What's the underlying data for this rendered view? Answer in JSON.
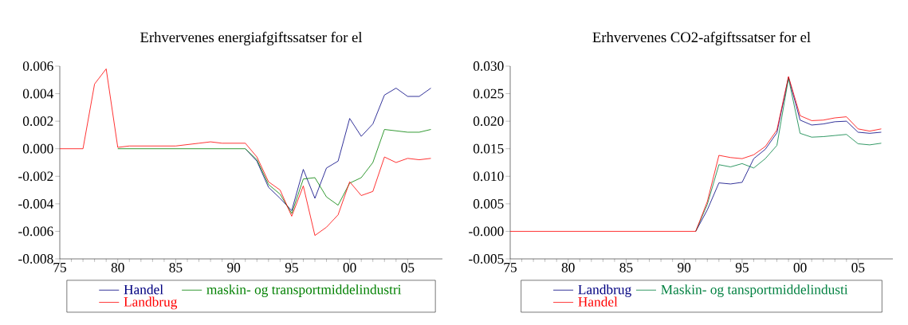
{
  "chart_data": [
    {
      "type": "line",
      "title": "Erhvervenes energiafgiftssatser for el",
      "legend": "bottom",
      "x": [
        1975,
        1976,
        1977,
        1978,
        1979,
        1980,
        1981,
        1982,
        1983,
        1984,
        1985,
        1986,
        1987,
        1988,
        1989,
        1990,
        1991,
        1992,
        1993,
        1994,
        1995,
        1996,
        1997,
        1998,
        1999,
        2000,
        2001,
        2002,
        2003,
        2004,
        2005,
        2006,
        2007
      ],
      "xlim": [
        1975,
        2008
      ],
      "xticks": [
        {
          "value": 1975,
          "label": "75"
        },
        {
          "value": 1980,
          "label": "80"
        },
        {
          "value": 1985,
          "label": "85"
        },
        {
          "value": 1990,
          "label": "90"
        },
        {
          "value": 1995,
          "label": "95"
        },
        {
          "value": 2000,
          "label": "00"
        },
        {
          "value": 2005,
          "label": "05"
        }
      ],
      "ylim": [
        -0.008,
        0.006
      ],
      "yticks": [
        {
          "value": -0.008,
          "label": "-0.008"
        },
        {
          "value": -0.006,
          "label": "-0.006"
        },
        {
          "value": -0.004,
          "label": "-0.004"
        },
        {
          "value": -0.002,
          "label": "-0.002"
        },
        {
          "value": 0,
          "label": "0.000"
        },
        {
          "value": 0.002,
          "label": "0.002"
        },
        {
          "value": 0.004,
          "label": "0.004"
        },
        {
          "value": 0.006,
          "label": "0.006"
        }
      ],
      "series": [
        {
          "name": "Handel",
          "color": "#000080",
          "values": [
            null,
            null,
            null,
            null,
            null,
            null,
            null,
            null,
            null,
            null,
            null,
            null,
            null,
            null,
            null,
            null,
            0,
            -0.0009,
            -0.0028,
            -0.0036,
            -0.0045,
            -0.0015,
            -0.0036,
            -0.0014,
            -0.0009,
            0.0022,
            0.0009,
            0.0018,
            0.0039,
            0.0044,
            0.0038,
            0.0038,
            0.0044
          ]
        },
        {
          "name": "maskin- og transportmiddelindustri",
          "color": "#008000",
          "values": [
            null,
            null,
            null,
            null,
            null,
            0,
            0,
            0,
            0,
            0,
            0,
            0,
            0,
            0,
            0,
            0,
            0,
            -0.0008,
            -0.0026,
            -0.0033,
            -0.0047,
            -0.0022,
            -0.0021,
            -0.0035,
            -0.0041,
            -0.0025,
            -0.0021,
            -0.001,
            0.0014,
            0.0013,
            0.0012,
            0.0012,
            0.0014
          ]
        },
        {
          "name": "Landbrug",
          "color": "#ff0000",
          "values": [
            0,
            0,
            0,
            0.0047,
            0.0058,
            0.0001,
            0.0002,
            0.0002,
            0.0002,
            0.0002,
            0.0002,
            0.0003,
            0.0004,
            0.0005,
            0.0004,
            0.0004,
            0.0004,
            -0.0006,
            -0.0024,
            -0.003,
            -0.0049,
            -0.0027,
            -0.0063,
            -0.0057,
            -0.0048,
            -0.0024,
            -0.0034,
            -0.0031,
            -0.0006,
            -0.001,
            -0.0007,
            -0.0008,
            -0.0007
          ]
        }
      ]
    },
    {
      "type": "line",
      "title": "Erhvervenes CO2-afgiftssatser for el",
      "legend": "bottom",
      "x": [
        1975,
        1976,
        1977,
        1978,
        1979,
        1980,
        1981,
        1982,
        1983,
        1984,
        1985,
        1986,
        1987,
        1988,
        1989,
        1990,
        1991,
        1992,
        1993,
        1994,
        1995,
        1996,
        1997,
        1998,
        1999,
        2000,
        2001,
        2002,
        2003,
        2004,
        2005,
        2006,
        2007
      ],
      "xlim": [
        1975,
        2008
      ],
      "xticks": [
        {
          "value": 1975,
          "label": "75"
        },
        {
          "value": 1980,
          "label": "80"
        },
        {
          "value": 1985,
          "label": "85"
        },
        {
          "value": 1990,
          "label": "90"
        },
        {
          "value": 1995,
          "label": "95"
        },
        {
          "value": 2000,
          "label": "00"
        },
        {
          "value": 2005,
          "label": "05"
        }
      ],
      "ylim": [
        -0.005,
        0.03
      ],
      "yticks": [
        {
          "value": -0.005,
          "label": "-0.005"
        },
        {
          "value": 0,
          "label": "-0.000"
        },
        {
          "value": 0.005,
          "label": "0.005"
        },
        {
          "value": 0.01,
          "label": "0.010"
        },
        {
          "value": 0.015,
          "label": "0.015"
        },
        {
          "value": 0.02,
          "label": "0.020"
        },
        {
          "value": 0.025,
          "label": "0.025"
        },
        {
          "value": 0.03,
          "label": "0.030"
        }
      ],
      "series": [
        {
          "name": "Landbrug",
          "color": "#000080",
          "values": [
            null,
            null,
            null,
            null,
            null,
            null,
            null,
            null,
            null,
            null,
            null,
            null,
            null,
            null,
            null,
            null,
            0,
            0.0039,
            0.0088,
            0.0086,
            0.0089,
            0.0132,
            0.0149,
            0.0179,
            0.028,
            0.0202,
            0.0193,
            0.0195,
            0.0199,
            0.02,
            0.018,
            0.0178,
            0.018
          ]
        },
        {
          "name": "Maskin- og tansportmiddelindusti",
          "color": "#008040",
          "values": [
            null,
            null,
            null,
            null,
            null,
            null,
            null,
            null,
            null,
            null,
            null,
            null,
            null,
            null,
            null,
            null,
            0,
            0.0049,
            0.0121,
            0.0117,
            0.0123,
            0.0115,
            0.0132,
            0.0156,
            0.0278,
            0.0178,
            0.0171,
            0.0172,
            0.0174,
            0.0176,
            0.0159,
            0.0157,
            0.016
          ]
        },
        {
          "name": "Handel",
          "color": "#ff0000",
          "values": [
            0,
            0,
            0,
            0,
            0,
            0,
            0,
            0,
            0,
            0,
            0,
            0,
            0,
            0,
            0,
            0,
            0,
            0.0054,
            0.0138,
            0.0134,
            0.0132,
            0.0139,
            0.0154,
            0.0184,
            0.0281,
            0.021,
            0.0201,
            0.0202,
            0.0206,
            0.0208,
            0.0186,
            0.0182,
            0.0186
          ]
        }
      ]
    }
  ]
}
